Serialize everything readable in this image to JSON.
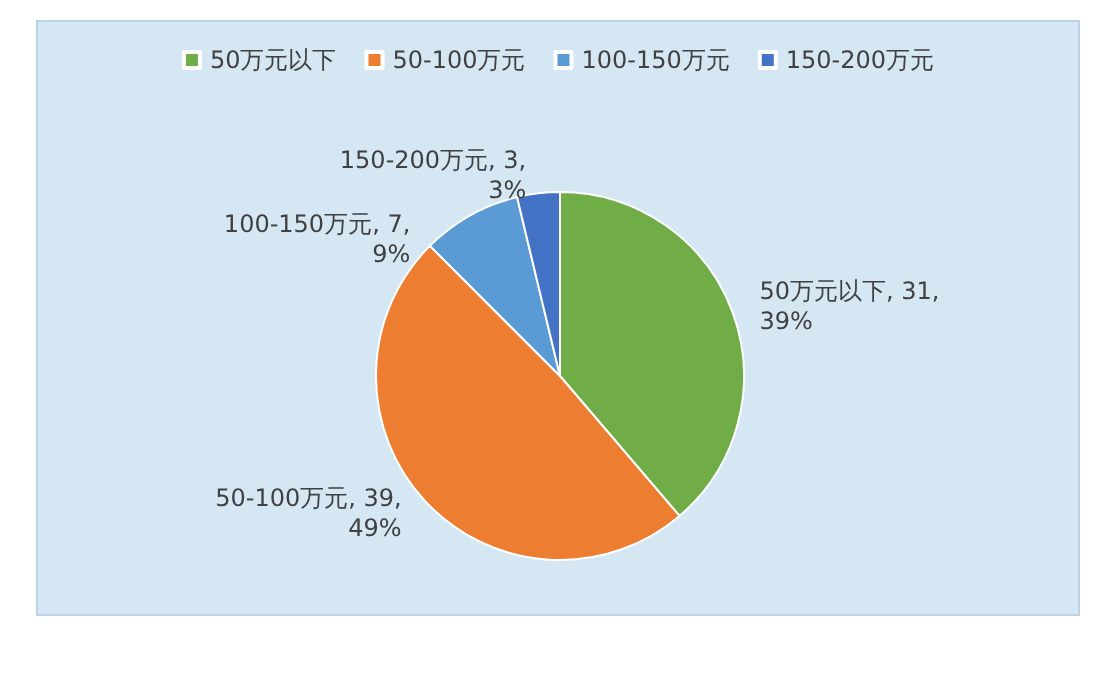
{
  "chart_data": {
    "type": "pie",
    "categories": [
      "50万元以下",
      "50-100万元",
      "100-150万元",
      "150-200万元"
    ],
    "values": [
      31,
      39,
      7,
      3
    ],
    "colors": [
      "#70ad47",
      "#ed7d31",
      "#5b9bd5",
      "#4472c4"
    ],
    "value_labels": [
      "50万元以下, 31,\n39%",
      "50-100万元, 39,\n49%",
      "100-150万元, 7,\n9%",
      "150-200万元, 3,\n3%"
    ],
    "legend": "top"
  }
}
